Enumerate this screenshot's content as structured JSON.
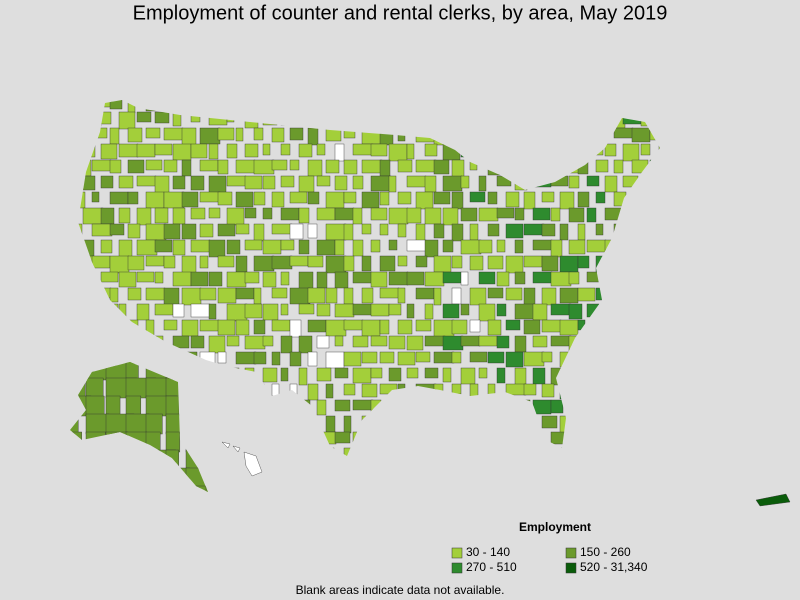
{
  "title": "Employment of counter and rental clerks, by area, May 2019",
  "legend": {
    "title": "Employment",
    "items": [
      {
        "label": "30 - 140",
        "color": "#a3cf3a"
      },
      {
        "label": "150 - 260",
        "color": "#6b9a2c"
      },
      {
        "label": "270 - 510",
        "color": "#2e8b2e"
      },
      {
        "label": "520 - 31,340",
        "color": "#0a5c0a"
      }
    ]
  },
  "note": "Blank areas indicate data not available."
}
